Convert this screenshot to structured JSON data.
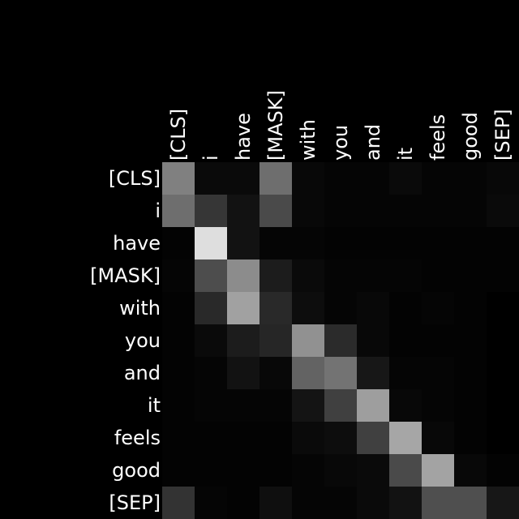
{
  "chart_data": {
    "type": "heatmap",
    "title": "",
    "xlabel": "",
    "ylabel": "",
    "x_tokens": [
      "[CLS]",
      "i",
      "have",
      "[MASK]",
      "with",
      "you",
      "and",
      "it",
      "feels",
      "good",
      "[SEP]"
    ],
    "y_tokens": [
      "[CLS]",
      "i",
      "have",
      "[MASK]",
      "with",
      "you",
      "and",
      "it",
      "feels",
      "good",
      "[SEP]"
    ],
    "value_range": [
      0,
      1
    ],
    "colormap": "gray",
    "background_color": "#000000",
    "text_color": "#ffffff",
    "values": [
      [
        0.5,
        0.04,
        0.04,
        0.43,
        0.03,
        0.02,
        0.02,
        0.04,
        0.02,
        0.02,
        0.03
      ],
      [
        0.43,
        0.21,
        0.07,
        0.29,
        0.03,
        0.02,
        0.02,
        0.02,
        0.02,
        0.02,
        0.04
      ],
      [
        0.01,
        0.87,
        0.07,
        0.02,
        0.02,
        0.01,
        0.01,
        0.01,
        0.01,
        0.01,
        0.01
      ],
      [
        0.02,
        0.3,
        0.55,
        0.11,
        0.04,
        0.02,
        0.02,
        0.02,
        0.01,
        0.01,
        0.01
      ],
      [
        0.01,
        0.16,
        0.63,
        0.16,
        0.05,
        0.02,
        0.03,
        0.01,
        0.02,
        0.01,
        0.0
      ],
      [
        0.01,
        0.04,
        0.11,
        0.15,
        0.57,
        0.17,
        0.03,
        0.01,
        0.01,
        0.01,
        0.0
      ],
      [
        0.01,
        0.02,
        0.07,
        0.03,
        0.39,
        0.45,
        0.09,
        0.02,
        0.02,
        0.01,
        0.0
      ],
      [
        0.01,
        0.02,
        0.02,
        0.02,
        0.08,
        0.25,
        0.62,
        0.03,
        0.02,
        0.01,
        0.0
      ],
      [
        0.01,
        0.01,
        0.01,
        0.01,
        0.04,
        0.05,
        0.25,
        0.65,
        0.03,
        0.01,
        0.0
      ],
      [
        0.01,
        0.01,
        0.01,
        0.01,
        0.02,
        0.03,
        0.04,
        0.29,
        0.64,
        0.03,
        0.01
      ],
      [
        0.2,
        0.02,
        0.01,
        0.06,
        0.02,
        0.02,
        0.04,
        0.07,
        0.31,
        0.31,
        0.09
      ]
    ]
  }
}
